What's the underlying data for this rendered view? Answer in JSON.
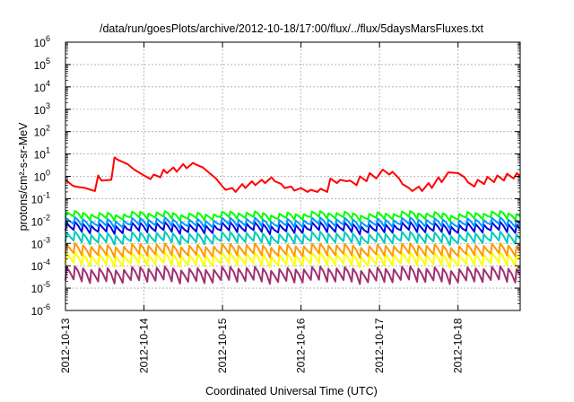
{
  "chart_data": {
    "type": "line",
    "title": "/data/run/goesPlots/archive/2012-10-18/17:00/flux/../flux/5daysMarsFluxes.txt",
    "xlabel": "Coordinated Universal Time (UTC)",
    "ylabel": "protons/cm²-s-sr-MeV",
    "y_scale": "log",
    "ylim": [
      1e-06,
      1000000.0
    ],
    "xlim": [
      "2012-10-13",
      "2012-10-18 19:00"
    ],
    "x_ticks": [
      "2012-10-13",
      "2012-10-14",
      "2012-10-15",
      "2012-10-16",
      "2012-10-17",
      "2012-10-18"
    ],
    "y_ticks": [
      {
        "base": "10",
        "exp": "-6"
      },
      {
        "base": "10",
        "exp": "-5"
      },
      {
        "base": "10",
        "exp": "-4"
      },
      {
        "base": "10",
        "exp": "-3"
      },
      {
        "base": "10",
        "exp": "-2"
      },
      {
        "base": "10",
        "exp": "-1"
      },
      {
        "base": "10",
        "exp": "0"
      },
      {
        "base": "10",
        "exp": "1"
      },
      {
        "base": "10",
        "exp": "2"
      },
      {
        "base": "10",
        "exp": "3"
      },
      {
        "base": "10",
        "exp": "4"
      },
      {
        "base": "10",
        "exp": "5"
      },
      {
        "base": "10",
        "exp": "6"
      }
    ],
    "grid": true,
    "legend": "none",
    "series": [
      {
        "color": "#ff0000",
        "x": [
          "2012-10-13 00:00",
          "2012-10-13 02:00",
          "2012-10-13 03:00",
          "2012-10-13 06:00",
          "2012-10-13 09:00",
          "2012-10-13 10:00",
          "2012-10-13 11:00",
          "2012-10-13 14:00",
          "2012-10-13 15:00",
          "2012-10-13 16:00",
          "2012-10-13 19:00",
          "2012-10-13 21:00",
          "2012-10-14 00:00",
          "2012-10-14 02:00",
          "2012-10-14 03:00",
          "2012-10-14 05:00",
          "2012-10-14 06:00",
          "2012-10-14 07:00",
          "2012-10-14 09:00",
          "2012-10-14 10:00",
          "2012-10-14 12:00",
          "2012-10-14 13:00",
          "2012-10-14 15:00",
          "2012-10-14 16:00",
          "2012-10-14 18:00",
          "2012-10-14 20:00",
          "2012-10-14 22:00",
          "2012-10-15 00:00",
          "2012-10-15 01:00",
          "2012-10-15 03:00",
          "2012-10-15 04:00",
          "2012-10-15 06:00",
          "2012-10-15 07:00",
          "2012-10-15 09:00",
          "2012-10-15 10:00",
          "2012-10-15 12:00",
          "2012-10-15 13:00",
          "2012-10-15 15:00",
          "2012-10-15 16:00",
          "2012-10-15 18:00",
          "2012-10-15 19:00",
          "2012-10-15 21:00",
          "2012-10-15 22:00",
          "2012-10-16 00:00",
          "2012-10-16 02:00",
          "2012-10-16 03:00",
          "2012-10-16 05:00",
          "2012-10-16 06:00",
          "2012-10-16 08:00",
          "2012-10-16 09:00",
          "2012-10-16 11:00",
          "2012-10-16 12:00",
          "2012-10-16 14:00",
          "2012-10-16 15:00",
          "2012-10-16 17:00",
          "2012-10-16 18:00",
          "2012-10-16 20:00",
          "2012-10-16 21:00",
          "2012-10-16 23:00",
          "2012-10-17 01:00",
          "2012-10-17 03:00",
          "2012-10-17 04:00",
          "2012-10-17 06:00",
          "2012-10-17 07:00",
          "2012-10-17 09:00",
          "2012-10-17 10:00",
          "2012-10-17 12:00",
          "2012-10-17 13:00",
          "2012-10-17 15:00",
          "2012-10-17 16:00",
          "2012-10-17 18:00",
          "2012-10-17 19:00",
          "2012-10-17 21:00",
          "2012-10-18 00:00",
          "2012-10-18 02:00",
          "2012-10-18 03:00",
          "2012-10-18 05:00",
          "2012-10-18 06:00",
          "2012-10-18 08:00",
          "2012-10-18 09:00",
          "2012-10-18 11:00",
          "2012-10-18 12:00",
          "2012-10-18 14:00",
          "2012-10-18 15:00",
          "2012-10-18 17:00",
          "2012-10-18 18:00",
          "2012-10-18 19:00"
        ],
        "values": [
          0.7,
          0.4,
          0.35,
          0.3,
          0.22,
          1.1,
          0.65,
          0.7,
          7.0,
          5.5,
          3.5,
          2.0,
          1.1,
          0.75,
          1.2,
          0.9,
          2.0,
          1.4,
          2.5,
          1.6,
          3.5,
          2.3,
          4.0,
          3.3,
          2.5,
          1.4,
          0.8,
          0.35,
          0.25,
          0.3,
          0.2,
          0.45,
          0.3,
          0.6,
          0.4,
          0.7,
          0.5,
          0.9,
          0.6,
          0.45,
          0.3,
          0.35,
          0.23,
          0.3,
          0.2,
          0.25,
          0.2,
          0.28,
          0.2,
          0.8,
          0.5,
          0.7,
          0.6,
          0.65,
          0.4,
          1.0,
          0.6,
          1.4,
          0.8,
          2.0,
          1.2,
          1.6,
          0.8,
          0.45,
          0.3,
          0.22,
          0.35,
          0.22,
          0.5,
          0.3,
          0.9,
          0.55,
          1.5,
          1.4,
          0.9,
          0.55,
          0.35,
          0.7,
          0.45,
          0.95,
          0.55,
          1.1,
          0.65,
          1.3,
          0.8,
          1.4,
          1.0
        ]
      },
      {
        "color": "#00ff00",
        "base": 0.013,
        "amp": 1.7,
        "peak": 0.023
      },
      {
        "color": "#0099ff",
        "base": 0.006,
        "amp": 1.8,
        "peak": 0.012
      },
      {
        "color": "#0000dd",
        "base": 0.0033,
        "amp": 1.9,
        "peak": 0.0075
      },
      {
        "color": "#00ccbb",
        "base": 0.0011,
        "amp": 2.1,
        "peak": 0.003
      },
      {
        "color": "#ff9900",
        "base": 0.0003,
        "amp": 2.3,
        "peak": 0.0011
      },
      {
        "color": "#ffff00",
        "base": 0.00011,
        "amp": 2.5,
        "peak": 0.0006
      },
      {
        "color": "#a03070",
        "base": 2e-05,
        "amp": 3.2,
        "peak": 0.0003
      }
    ]
  }
}
